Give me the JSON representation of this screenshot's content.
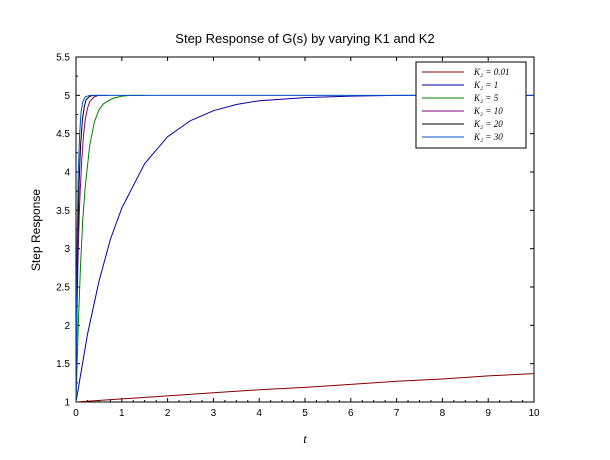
{
  "chart_data": {
    "type": "line",
    "title": "Step Response of G(s) by varying K1 and K2",
    "xlabel": "t",
    "ylabel": "Step Response",
    "xlim": [
      0,
      10
    ],
    "ylim": [
      1,
      5.5
    ],
    "x_ticks": [
      0,
      1,
      2,
      3,
      4,
      5,
      6,
      7,
      8,
      9,
      10
    ],
    "y_ticks": [
      1,
      1.5,
      2,
      2.5,
      3,
      3.5,
      4,
      4.5,
      5,
      5.5
    ],
    "y_tick_labels": [
      "1",
      "1.5",
      "2",
      "2.5",
      "3",
      "3.5",
      "4",
      "4.5",
      "5",
      "5.5"
    ],
    "grid": false,
    "legend_position": "top-right",
    "series": [
      {
        "name": "K₂ = 0.01",
        "color": "#800000",
        "x": [
          0,
          1,
          2,
          3,
          4,
          5,
          6,
          7,
          8,
          9,
          10
        ],
        "y": [
          1.0,
          1.04,
          1.08,
          1.12,
          1.16,
          1.19,
          1.23,
          1.27,
          1.3,
          1.34,
          1.37
        ]
      },
      {
        "name": "K₂ = 1",
        "color": "#0000a0",
        "x": [
          0,
          0.25,
          0.5,
          0.75,
          1,
          1.5,
          2,
          2.5,
          3,
          3.5,
          4,
          5,
          6,
          7,
          8,
          9,
          10
        ],
        "y": [
          1.0,
          1.88,
          2.57,
          3.12,
          3.53,
          4.11,
          4.46,
          4.67,
          4.8,
          4.88,
          4.93,
          4.97,
          4.99,
          5.0,
          5.0,
          5.0,
          5.0
        ]
      },
      {
        "name": "K₂ = 5",
        "color": "#008000",
        "x": [
          0,
          0.05,
          0.1,
          0.15,
          0.2,
          0.3,
          0.4,
          0.5,
          0.6,
          0.8,
          1.0,
          1.2,
          1.5
        ],
        "y": [
          1.0,
          2.0,
          2.8,
          3.4,
          3.8,
          4.35,
          4.65,
          4.81,
          4.89,
          4.96,
          4.99,
          5.0,
          5.0
        ]
      },
      {
        "name": "K₂ = 10",
        "color": "#800080",
        "x": [
          0,
          0.02,
          0.05,
          0.08,
          0.12,
          0.16,
          0.2,
          0.25,
          0.3,
          0.4,
          0.5,
          0.7
        ],
        "y": [
          1.0,
          2.2,
          3.0,
          3.6,
          4.1,
          4.45,
          4.68,
          4.83,
          4.92,
          4.98,
          5.0,
          5.0
        ]
      },
      {
        "name": "K₂ = 20",
        "color": "#000000",
        "x": [
          0,
          0.02,
          0.04,
          0.07,
          0.1,
          0.14,
          0.18,
          0.22,
          0.3,
          0.4,
          0.5
        ],
        "y": [
          1.0,
          2.3,
          3.2,
          3.9,
          4.35,
          4.68,
          4.85,
          4.94,
          4.99,
          5.0,
          5.0
        ]
      },
      {
        "name": "K₂ = 30",
        "color": "#0050c8",
        "x": [
          0,
          0.015,
          0.03,
          0.05,
          0.08,
          0.11,
          0.15,
          0.2,
          0.3,
          0.5,
          1,
          2,
          4,
          6,
          8,
          10
        ],
        "y": [
          1.0,
          2.5,
          3.3,
          4.0,
          4.5,
          4.78,
          4.92,
          4.98,
          5.0,
          5.0,
          5.0,
          5.0,
          5.0,
          5.0,
          5.0,
          5.0
        ]
      }
    ]
  }
}
